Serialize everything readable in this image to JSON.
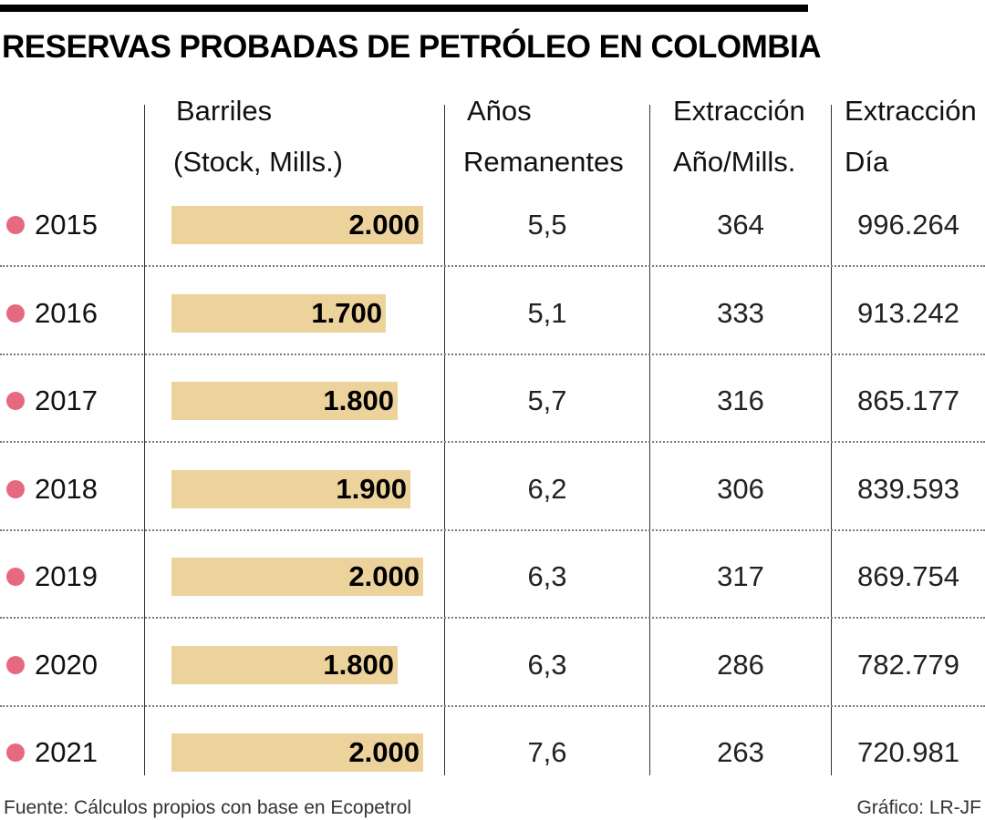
{
  "title": "RESERVAS PROBADAS DE PETRÓLEO EN COLOMBIA",
  "colors": {
    "bar": "#ecd29b",
    "dot": "#e6697e"
  },
  "headers": {
    "barriles": [
      "Barriles",
      "(Stock, Mills.)"
    ],
    "anos": [
      "Años",
      "Remanentes"
    ],
    "extraccion_ano": [
      "Extracción",
      "Año/Mills."
    ],
    "extraccion_dia": [
      "Extracción",
      "Día"
    ]
  },
  "footer": {
    "source": "Fuente: Cálculos propios con base en Ecopetrol",
    "credit": "Gráfico: LR-JF"
  },
  "chart_data": {
    "type": "table",
    "title": "RESERVAS PROBADAS DE PETRÓLEO EN COLOMBIA",
    "bar_column": "Barriles (Stock, Mills.)",
    "bar_max": 2000,
    "rows": [
      {
        "year": "2015",
        "barriles": 2000,
        "barriles_label": "2.000",
        "anos": "5,5",
        "ext_ano": "364",
        "ext_dia": "996.264"
      },
      {
        "year": "2016",
        "barriles": 1700,
        "barriles_label": "1.700",
        "anos": "5,1",
        "ext_ano": "333",
        "ext_dia": "913.242"
      },
      {
        "year": "2017",
        "barriles": 1800,
        "barriles_label": "1.800",
        "anos": "5,7",
        "ext_ano": "316",
        "ext_dia": "865.177"
      },
      {
        "year": "2018",
        "barriles": 1900,
        "barriles_label": "1.900",
        "anos": "6,2",
        "ext_ano": "306",
        "ext_dia": "839.593"
      },
      {
        "year": "2019",
        "barriles": 2000,
        "barriles_label": "2.000",
        "anos": "6,3",
        "ext_ano": "317",
        "ext_dia": "869.754"
      },
      {
        "year": "2020",
        "barriles": 1800,
        "barriles_label": "1.800",
        "anos": "6,3",
        "ext_ano": "286",
        "ext_dia": "782.779"
      },
      {
        "year": "2021",
        "barriles": 2000,
        "barriles_label": "2.000",
        "anos": "7,6",
        "ext_ano": "263",
        "ext_dia": "720.981"
      }
    ]
  }
}
